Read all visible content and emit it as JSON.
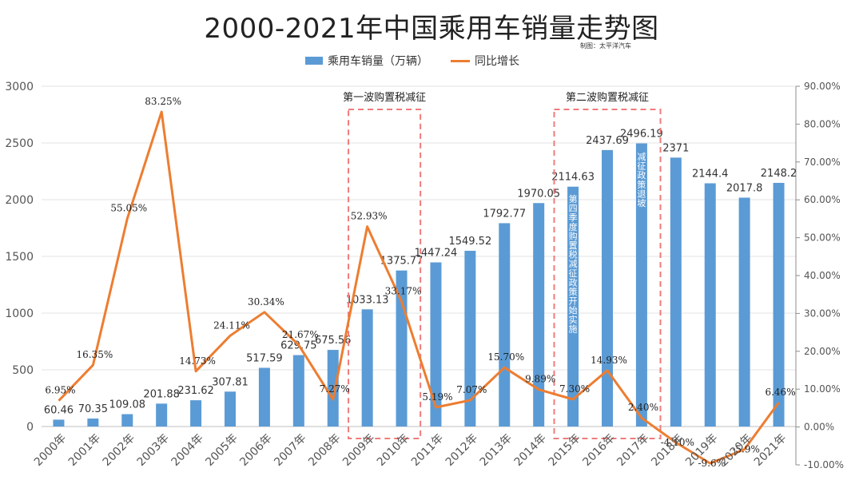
{
  "chart_data": {
    "type": "bar+line",
    "title": "2000-2021年中国乘用车销量走势图",
    "source": "制图：太平洋汽车",
    "categories": [
      "2000年",
      "2001年",
      "2002年",
      "2003年",
      "2004年",
      "2005年",
      "2006年",
      "2007年",
      "2008年",
      "2009年",
      "2010年",
      "2011年",
      "2012年",
      "2013年",
      "2014年",
      "2015年",
      "2016年",
      "2017年",
      "2018年",
      "2019年",
      "2020年",
      "2021年"
    ],
    "series": [
      {
        "name": "乘用车销量（万辆）",
        "type": "bar",
        "axis": "left",
        "color": "#5b9bd5",
        "values": [
          60.46,
          70.35,
          109.08,
          201.88,
          231.62,
          307.81,
          517.59,
          629.75,
          675.56,
          1033.13,
          1375.77,
          1447.24,
          1549.52,
          1792.77,
          1970.05,
          2114.63,
          2437.69,
          2496.19,
          2371,
          2144.4,
          2017.8,
          2148.2
        ],
        "labels": [
          "60.46",
          "70.35",
          "109.08",
          "201.88",
          "231.62",
          "307.81",
          "517.59",
          "629.75",
          "675.56",
          "1033.13",
          "1375.77",
          "1447.24",
          "1549.52",
          "1792.77",
          "1970.05",
          "2114.63",
          "2437.69",
          "2496.19",
          "2371",
          "2144.4",
          "2017.8",
          "2148.2"
        ]
      },
      {
        "name": "同比增长",
        "type": "line",
        "axis": "right",
        "color": "#ed7d31",
        "values": [
          6.95,
          16.35,
          55.05,
          83.25,
          14.73,
          24.11,
          30.34,
          21.67,
          7.27,
          52.93,
          33.17,
          5.19,
          7.07,
          15.7,
          9.89,
          7.3,
          14.93,
          2.4,
          -4.1,
          -9.6,
          -5.9,
          6.46
        ],
        "labels": [
          "6.95%",
          "16.35%",
          "55.05%",
          "83.25%",
          "14.73%",
          "24.11%",
          "30.34%",
          "21.67%",
          "7.27%",
          "52.93%",
          "33.17%",
          "5.19%",
          "7.07%",
          "15.70%",
          "9.89%",
          "7.30%",
          "14.93%",
          "2.40%",
          "-4.10%",
          "-9.6%",
          "-5.9%",
          "6.46%"
        ]
      }
    ],
    "y_left": {
      "min": 0,
      "max": 3000,
      "ticks": [
        "0",
        "500",
        "1000",
        "1500",
        "2000",
        "2500",
        "3000"
      ]
    },
    "y_right": {
      "min": -10,
      "max": 90,
      "ticks": [
        "-10.00%",
        "0.00%",
        "10.00%",
        "20.00%",
        "30.00%",
        "40.00%",
        "50.00%",
        "60.00%",
        "70.00%",
        "80.00%",
        "90.00%"
      ]
    },
    "grid": true,
    "legend_position": "top-center",
    "annotations": {
      "wave1": {
        "label": "第一波购置税减征",
        "categories": [
          "2009年",
          "2010年"
        ]
      },
      "wave2": {
        "label": "第二波购置税减征",
        "categories": [
          "2015年",
          "2016年",
          "2017年"
        ]
      },
      "bar_note_2015": "第四季度购置税减征政策开始实施",
      "bar_note_2017": "减征政策退坡"
    }
  }
}
